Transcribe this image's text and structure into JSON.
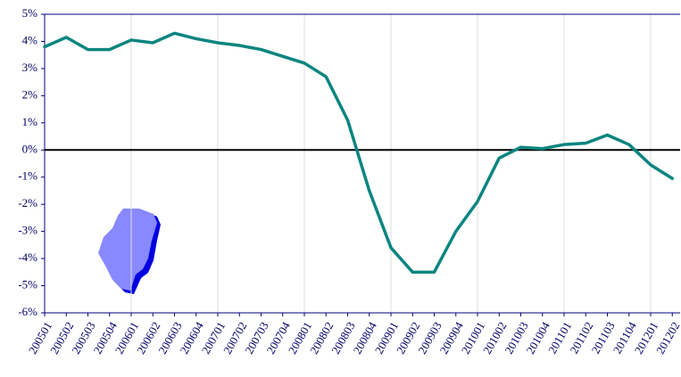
{
  "chart_data": {
    "type": "line",
    "categories": [
      "200501",
      "200502",
      "200503",
      "200504",
      "200601",
      "200602",
      "200603",
      "200604",
      "200701",
      "200702",
      "200703",
      "200704",
      "200801",
      "200802",
      "200803",
      "200804",
      "200901",
      "200902",
      "200903",
      "200904",
      "201001",
      "201002",
      "201003",
      "201004",
      "201101",
      "201102",
      "201103",
      "201104",
      "201201",
      "201202"
    ],
    "series": [
      {
        "color": "#0b8580",
        "values": [
          3.8,
          4.15,
          3.7,
          3.7,
          4.05,
          3.95,
          4.3,
          4.1,
          3.95,
          3.85,
          3.7,
          3.45,
          3.2,
          2.7,
          1.1,
          -1.5,
          -3.6,
          -4.5,
          -4.5,
          -3.0,
          -1.9,
          -0.3,
          0.1,
          0.05,
          0.2,
          0.25,
          0.55,
          0.2,
          -0.55,
          -1.05
        ]
      }
    ],
    "ylim": [
      -6,
      5
    ],
    "yticks": [
      {
        "value": 5,
        "label": "5%"
      },
      {
        "value": 4,
        "label": "4%"
      },
      {
        "value": 3,
        "label": "3%"
      },
      {
        "value": 2,
        "label": "2%"
      },
      {
        "value": 1,
        "label": "1%"
      },
      {
        "value": 0,
        "label": "0%"
      },
      {
        "value": -1,
        "label": "-1%"
      },
      {
        "value": -2,
        "label": "-2%"
      },
      {
        "value": -3,
        "label": "-3%"
      },
      {
        "value": -4,
        "label": "-4%"
      },
      {
        "value": -5,
        "label": "-5%"
      },
      {
        "value": -6,
        "label": "-6%"
      }
    ],
    "grid": true
  }
}
